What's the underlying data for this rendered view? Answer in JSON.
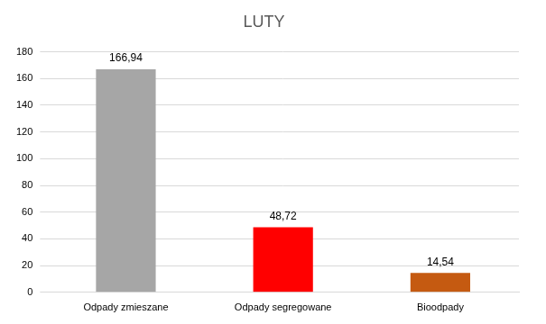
{
  "chart_data": {
    "type": "bar",
    "title": "LUTY",
    "categories": [
      "Odpady zmieszane",
      "Odpady segregowane",
      "Bioodpady"
    ],
    "values": [
      166.94,
      48.72,
      14.54
    ],
    "value_labels": [
      "166,94",
      "48,72",
      "14,54"
    ],
    "colors": [
      "#a6a6a6",
      "#ff0000",
      "#c55a11"
    ],
    "ylim": [
      0,
      180
    ],
    "yticks": [
      0,
      20,
      40,
      60,
      80,
      100,
      120,
      140,
      160,
      180
    ],
    "grid": true,
    "data_labels": true
  }
}
